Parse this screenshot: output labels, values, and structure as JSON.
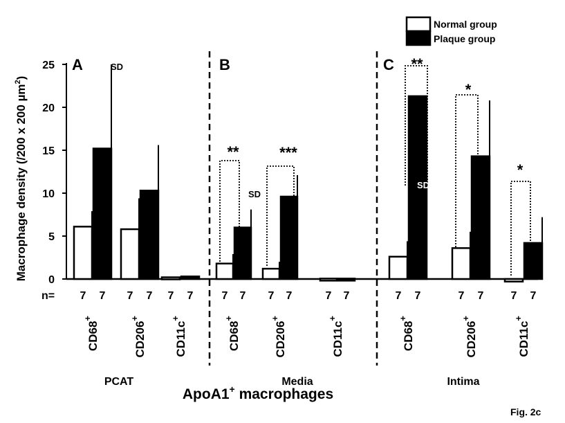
{
  "chart_data": {
    "type": "bar",
    "ylabel": "Macrophage density (/200 x 200 µm",
    "ylabel_sup": "2",
    "ylabel_close": ")",
    "xlabel": "ApoA1",
    "xlabel_sup": "+",
    "xlabel_rest": " macrophages",
    "ylim": [
      0,
      25
    ],
    "yticks": [
      "0",
      "5",
      "10",
      "15",
      "20",
      "25"
    ],
    "legend": {
      "position": "top-right",
      "entries": [
        {
          "name": "Normal group",
          "fill": "#ffffff"
        },
        {
          "name": "Plaque group",
          "fill": "#000000"
        }
      ]
    },
    "n_label": "n=",
    "footnote": "Fig. 2c",
    "panels": [
      {
        "letter": "A",
        "region": "PCAT",
        "groups": [
          {
            "marker": "CD68",
            "marker_sup": "+",
            "normal": 6.1,
            "normal_sd": 1.8,
            "plaque": 15.2,
            "plaque_sd": 9.8,
            "n_normal": "7",
            "n_plaque": "7"
          },
          {
            "marker": "CD206",
            "marker_sup": "+",
            "normal": 5.8,
            "normal_sd": 3.6,
            "plaque": 10.3,
            "plaque_sd": 5.3,
            "n_normal": "7",
            "n_plaque": "7"
          },
          {
            "marker": "CD11c",
            "marker_sup": "+",
            "normal": 0.2,
            "normal_sd": 0,
            "plaque": 0.3,
            "plaque_sd": 0,
            "n_normal": "7",
            "n_plaque": "7"
          }
        ],
        "annotations": [
          {
            "text": "SD"
          }
        ]
      },
      {
        "letter": "B",
        "region": "Media",
        "groups": [
          {
            "marker": "CD68",
            "marker_sup": "+",
            "normal": 1.8,
            "normal_sd": 1.1,
            "plaque": 6.0,
            "plaque_sd": 2.1,
            "n_normal": "7",
            "n_plaque": "7"
          },
          {
            "marker": "CD206",
            "marker_sup": "+",
            "normal": 1.2,
            "normal_sd": 0.8,
            "plaque": 9.6,
            "plaque_sd": 2.5,
            "n_normal": "7",
            "n_plaque": "7"
          },
          {
            "marker": "CD11c",
            "marker_sup": "+",
            "normal": 0.05,
            "normal_sd": 0,
            "plaque": 0.05,
            "plaque_sd": 0,
            "n_normal": "7",
            "n_plaque": "7"
          }
        ],
        "significance": [
          {
            "text": "**"
          },
          {
            "text": "***"
          }
        ],
        "annotations": [
          {
            "text": "SD"
          }
        ]
      },
      {
        "letter": "C",
        "region": "Intima",
        "groups": [
          {
            "marker": "CD68",
            "marker_sup": "+",
            "normal": 2.6,
            "normal_sd": 1.8,
            "plaque": 21.3,
            "plaque_sd": 0,
            "n_normal": "7",
            "n_plaque": "7"
          },
          {
            "marker": "CD206",
            "marker_sup": "+",
            "normal": 3.6,
            "normal_sd": 1.9,
            "plaque": 14.3,
            "plaque_sd": 6.5,
            "n_normal": "7",
            "n_plaque": "7"
          },
          {
            "marker": "CD11c",
            "marker_sup": "+",
            "normal": -0.3,
            "normal_sd": 0,
            "plaque": 4.2,
            "plaque_sd": 3.0,
            "n_normal": "7",
            "n_plaque": "7"
          }
        ],
        "significance": [
          {
            "text": "**"
          },
          {
            "text": "*"
          },
          {
            "text": "*"
          }
        ],
        "annotations": [
          {
            "text": "SD"
          }
        ]
      }
    ]
  }
}
